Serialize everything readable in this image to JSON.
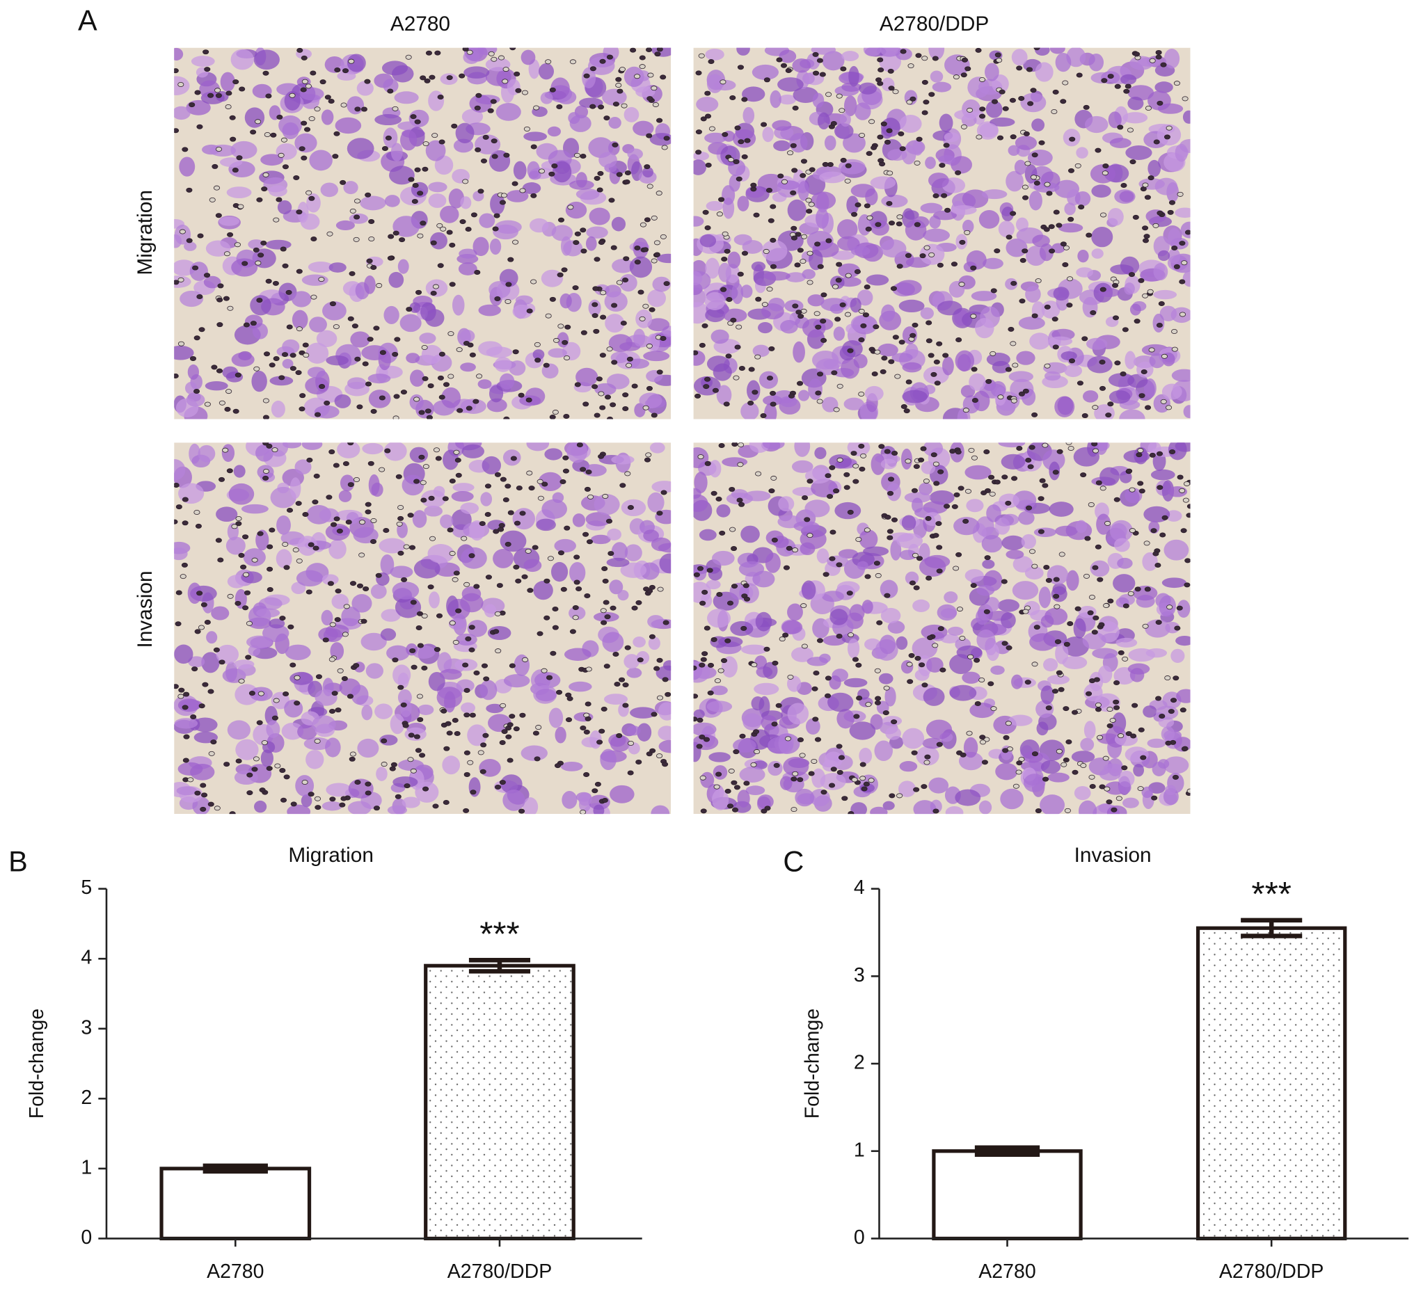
{
  "panel_labels": [
    "A",
    "B",
    "C"
  ],
  "microscopy": {
    "columns": [
      "A2780",
      "A2780/DDP"
    ],
    "rows": [
      "Migration",
      "Invasion"
    ]
  },
  "chart_data": [
    {
      "type": "bar",
      "title": "Migration",
      "ylabel": "Fold-change",
      "categories": [
        "A2780",
        "A2780/DDP"
      ],
      "values": [
        1,
        3.9
      ],
      "errors": [
        0.04,
        0.08
      ],
      "significance_labels": [
        null,
        "***"
      ],
      "fill_patterns": [
        "none",
        "dots"
      ],
      "edge_color": "#231815",
      "ylim": [
        0,
        5
      ],
      "yticks": [
        0,
        1,
        2,
        3,
        4,
        5
      ]
    },
    {
      "type": "bar",
      "title": "Invasion",
      "ylabel": "Fold-change",
      "categories": [
        "A2780",
        "A2780/DDP"
      ],
      "values": [
        1,
        3.55
      ],
      "errors": [
        0.04,
        0.09
      ],
      "significance_labels": [
        null,
        "***"
      ],
      "fill_patterns": [
        "none",
        "dots"
      ],
      "edge_color": "#231815",
      "ylim": [
        0,
        4
      ],
      "yticks": [
        0,
        1,
        2,
        3,
        4
      ]
    }
  ]
}
